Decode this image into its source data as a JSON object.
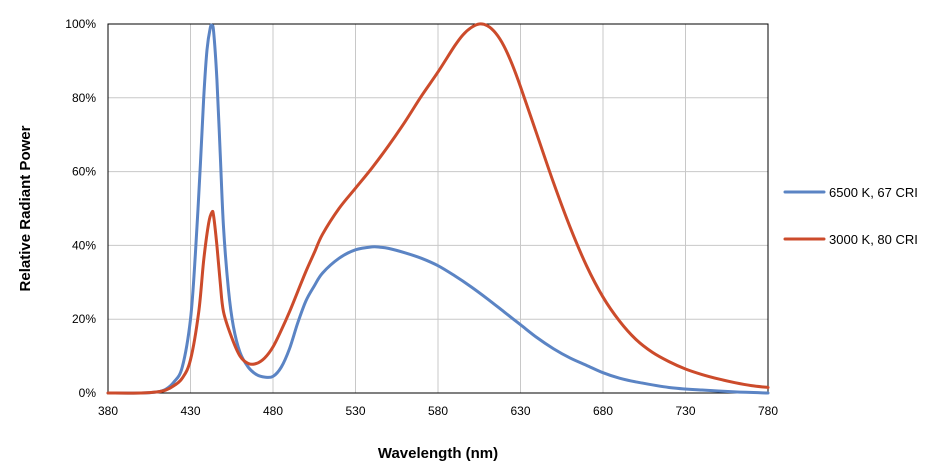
{
  "chart_data": {
    "type": "line",
    "title": "",
    "xlabel": "Wavelength (nm)",
    "ylabel": "Relative Radiant Power",
    "xlim": [
      380,
      780
    ],
    "ylim": [
      0,
      100
    ],
    "x_ticks": [
      380,
      430,
      480,
      530,
      580,
      630,
      680,
      730,
      780
    ],
    "x_tick_labels": [
      "380",
      "430",
      "480",
      "530",
      "580",
      "630",
      "680",
      "730",
      "780"
    ],
    "y_ticks": [
      0,
      20,
      40,
      60,
      80,
      100
    ],
    "y_tick_labels": [
      "0%",
      "20%",
      "40%",
      "60%",
      "80%",
      "100%"
    ],
    "grid": true,
    "legend_position": "right",
    "series": [
      {
        "name": "6500 K, 67 CRI",
        "color": "#5b84c4",
        "x": [
          380,
          400,
          410,
          415,
          420,
          425,
          430,
          433,
          436,
          438,
          440,
          442,
          443,
          444,
          446,
          448,
          450,
          453,
          456,
          460,
          465,
          470,
          475,
          480,
          485,
          490,
          495,
          500,
          505,
          510,
          520,
          530,
          540,
          545,
          550,
          560,
          570,
          580,
          590,
          600,
          610,
          620,
          630,
          640,
          650,
          660,
          670,
          680,
          690,
          700,
          720,
          740,
          760,
          780
        ],
        "y": [
          0,
          0,
          0.3,
          1,
          3,
          7,
          20,
          38,
          62,
          80,
          93,
          99,
          99.5,
          98,
          85,
          65,
          45,
          28,
          18,
          11,
          7,
          5,
          4.3,
          4.5,
          7,
          12,
          19,
          25,
          29,
          32.5,
          36.5,
          38.8,
          39.6,
          39.5,
          39.2,
          38,
          36.5,
          34.5,
          31.8,
          28.8,
          25.5,
          22,
          18.5,
          15,
          12,
          9.5,
          7.5,
          5.5,
          4,
          3,
          1.5,
          0.8,
          0.3,
          0
        ]
      },
      {
        "name": "3000 K, 80 CRI",
        "color": "#cc4b2b",
        "x": [
          380,
          400,
          410,
          415,
          420,
          425,
          430,
          435,
          438,
          441,
          443,
          444,
          446,
          448,
          450,
          455,
          460,
          465,
          470,
          475,
          480,
          485,
          490,
          495,
          500,
          505,
          510,
          520,
          530,
          540,
          550,
          560,
          570,
          580,
          590,
          595,
          600,
          605,
          610,
          615,
          620,
          625,
          630,
          640,
          650,
          660,
          670,
          680,
          690,
          700,
          710,
          720,
          730,
          740,
          750,
          760,
          770,
          780
        ],
        "y": [
          0,
          0,
          0.3,
          0.8,
          2,
          4,
          9,
          22,
          36,
          46,
          49,
          48,
          40,
          30,
          22,
          15,
          10,
          8,
          8,
          9.5,
          12.5,
          17,
          22,
          27.5,
          33,
          38,
          43,
          50,
          55.5,
          61,
          67,
          73.5,
          80.5,
          87,
          94,
          97,
          99,
          100,
          99.5,
          97.5,
          94,
          89,
          83,
          70,
          57,
          45,
          34.5,
          26,
          19.5,
          14.5,
          11,
          8.5,
          6.5,
          5,
          3.8,
          2.8,
          2,
          1.5
        ]
      }
    ]
  }
}
